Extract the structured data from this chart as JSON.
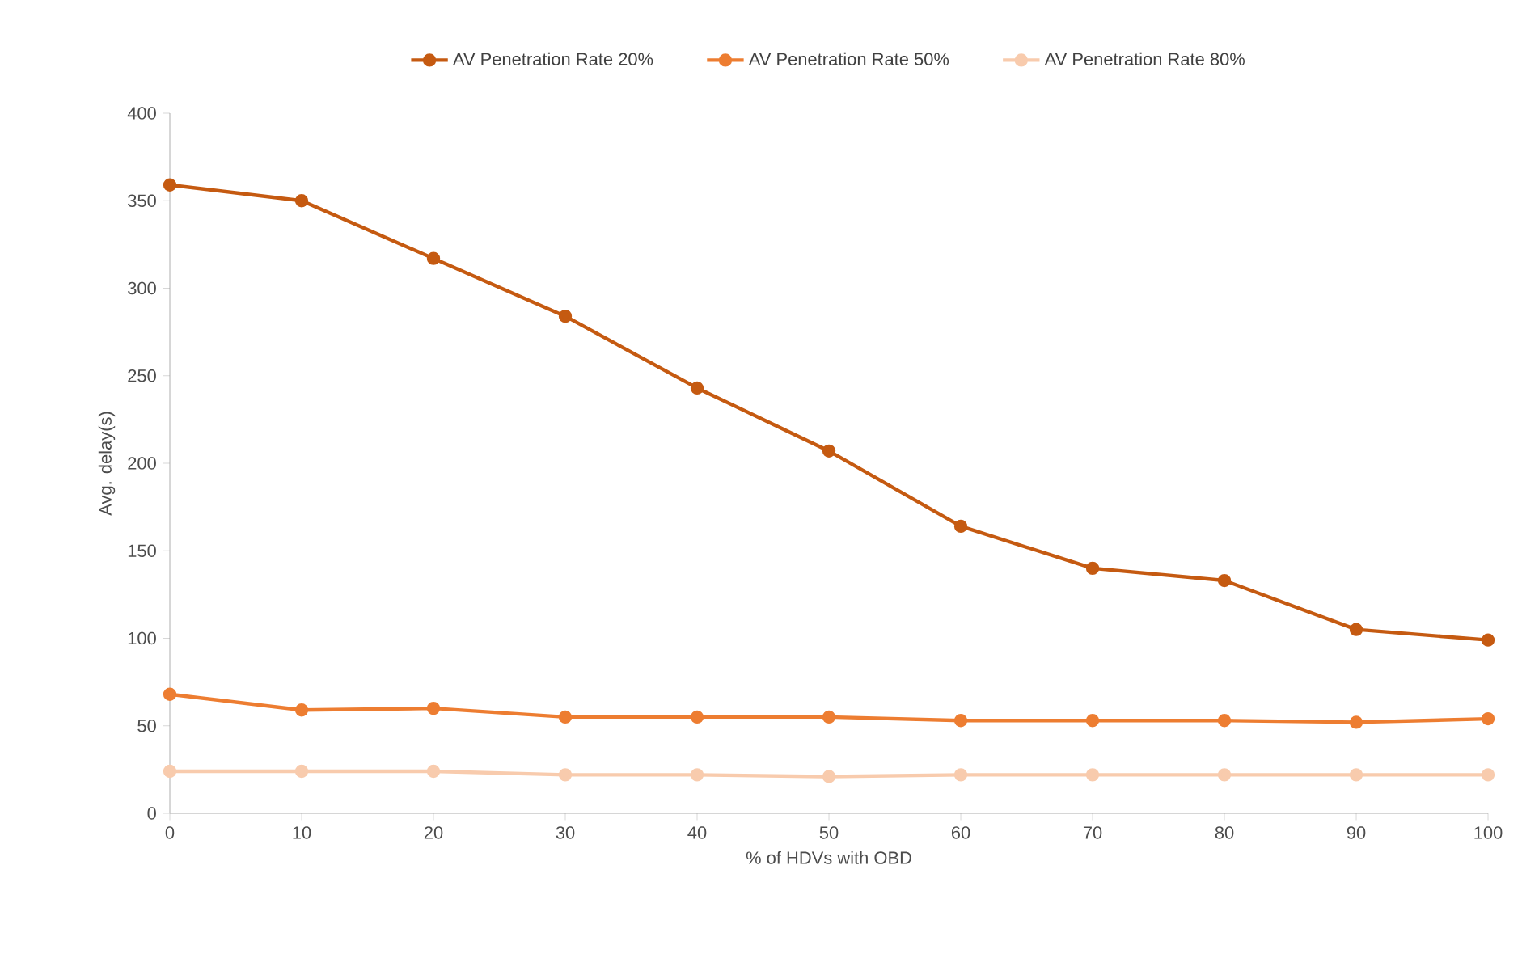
{
  "chart_data": {
    "type": "line",
    "xlabel": "% of HDVs with OBD",
    "ylabel": "Avg. delay(s)",
    "x": [
      0,
      10,
      20,
      30,
      40,
      50,
      60,
      70,
      80,
      90,
      100
    ],
    "series": [
      {
        "name": "AV Penetration Rate 20%",
        "color": "#c55a11",
        "values": [
          359,
          350,
          317,
          284,
          243,
          207,
          164,
          140,
          133,
          105,
          99
        ]
      },
      {
        "name": "AV Penetration Rate 50%",
        "color": "#ed7d31",
        "values": [
          68,
          59,
          60,
          55,
          55,
          55,
          53,
          53,
          53,
          52,
          54
        ]
      },
      {
        "name": "AV Penetration Rate 80%",
        "color": "#f8cbad",
        "values": [
          24,
          24,
          24,
          22,
          22,
          21,
          22,
          22,
          22,
          22,
          22
        ]
      }
    ],
    "xlim": [
      0,
      100
    ],
    "xticks": [
      0,
      10,
      20,
      30,
      40,
      50,
      60,
      70,
      80,
      90,
      100
    ],
    "ylim": [
      0,
      400
    ],
    "yticks": [
      0,
      50,
      100,
      150,
      200,
      250,
      300,
      350,
      400
    ],
    "grid": false,
    "legend": "top",
    "marker": "circle",
    "line_style": "solid"
  }
}
